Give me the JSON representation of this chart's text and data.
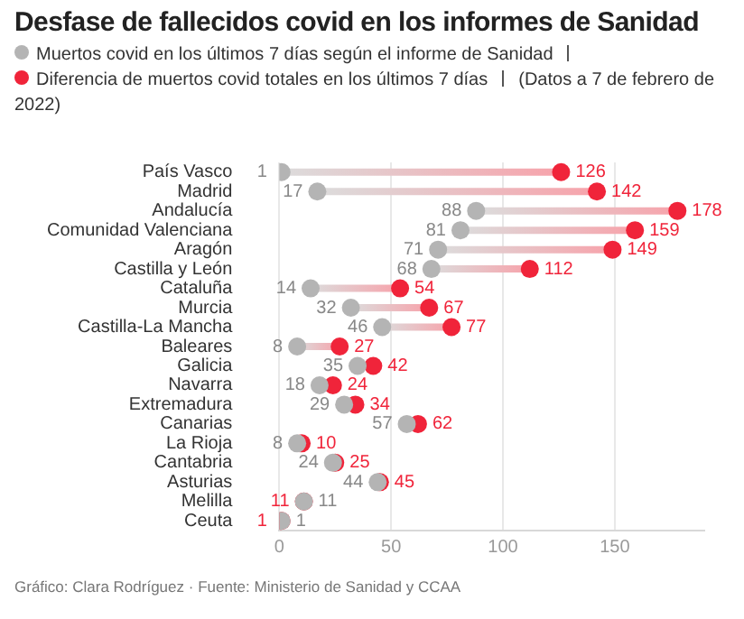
{
  "chart_data": {
    "type": "scatter",
    "orientation": "horizontal",
    "title": "Desfase de fallecidos covid en los informes de Sanidad",
    "subtitle": "(Datos a 7 de febrero de 2022)",
    "categories": [
      "País Vasco",
      "Madrid",
      "Andalucía",
      "Comunidad Valenciana",
      "Aragón",
      "Castilla y León",
      "Cataluña",
      "Murcia",
      "Castilla-La Mancha",
      "Baleares",
      "Galicia",
      "Navarra",
      "Extremadura",
      "Canarias",
      "La Rioja",
      "Cantabria",
      "Asturias",
      "Melilla",
      "Ceuta"
    ],
    "series": [
      {
        "name": "Muertos covid en los últimos 7 días según el informe de Sanidad",
        "color": "#b4b4b4",
        "values": [
          1,
          17,
          88,
          81,
          71,
          68,
          14,
          32,
          46,
          8,
          35,
          18,
          29,
          57,
          8,
          24,
          44,
          11,
          1
        ]
      },
      {
        "name": "Diferencia de muertos covid totales en los últimos 7 días",
        "color": "#f0243a",
        "values": [
          126,
          142,
          178,
          159,
          149,
          112,
          54,
          67,
          77,
          27,
          42,
          24,
          34,
          62,
          10,
          25,
          45,
          11,
          1
        ]
      }
    ],
    "xlim": [
      0,
      190
    ],
    "xticks": [
      0,
      50,
      100,
      150
    ],
    "grid": "x",
    "legend": "top",
    "marker": "circle",
    "data_labels": true,
    "annotations": [
      "Gráfico: Clara Rodríguez · Fuente: Ministerio de Sanidad y CCAA"
    ]
  }
}
